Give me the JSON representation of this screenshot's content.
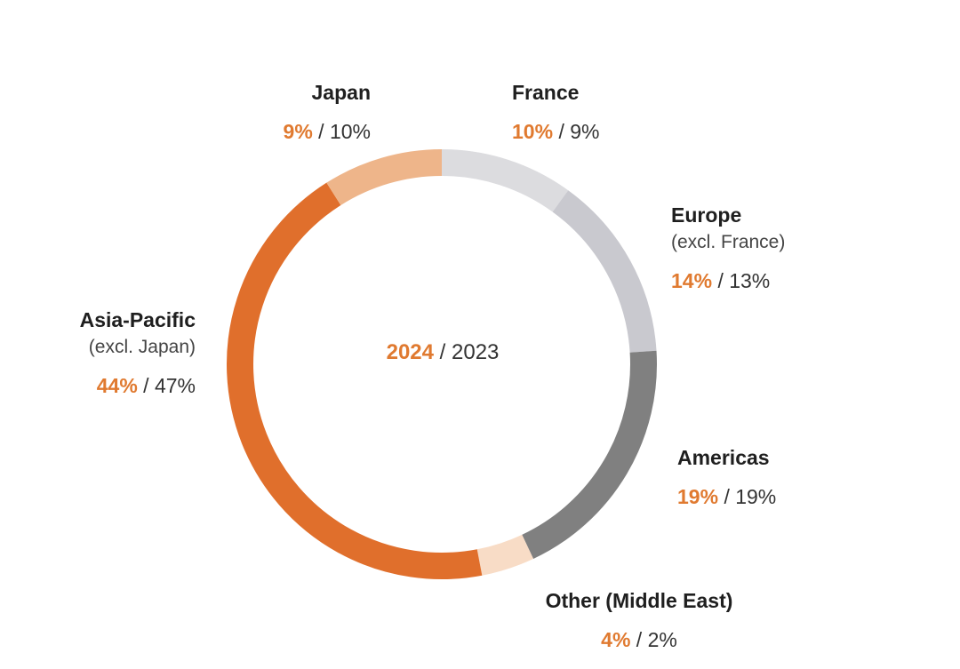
{
  "chart_data": {
    "type": "pie",
    "center_label": {
      "current_year": "2024",
      "separator": "/",
      "previous_year": "2023"
    },
    "segments": [
      {
        "name": "France",
        "sublabel": "",
        "value_2024": 10,
        "value_2023": 9,
        "current_text": "10%",
        "previous_text": "9%",
        "color": "#dcdcdf"
      },
      {
        "name": "Europe",
        "sublabel": "(excl. France)",
        "value_2024": 14,
        "value_2023": 13,
        "current_text": "14%",
        "previous_text": "13%",
        "color": "#c9c9cf"
      },
      {
        "name": "Americas",
        "sublabel": "",
        "value_2024": 19,
        "value_2023": 19,
        "current_text": "19%",
        "previous_text": "19%",
        "color": "#808080"
      },
      {
        "name": "Other (Middle East)",
        "sublabel": "",
        "value_2024": 4,
        "value_2023": 2,
        "current_text": "4%",
        "previous_text": "2%",
        "color": "#f8dcc6"
      },
      {
        "name": "Asia-Pacific",
        "sublabel": "(excl. Japan)",
        "value_2024": 44,
        "value_2023": 47,
        "current_text": "44%",
        "previous_text": "47%",
        "color": "#e06f2c"
      },
      {
        "name": "Japan",
        "sublabel": "",
        "value_2024": 9,
        "value_2023": 10,
        "current_text": "9%",
        "previous_text": "10%",
        "color": "#eeb58a"
      }
    ],
    "value_separator": "/"
  }
}
